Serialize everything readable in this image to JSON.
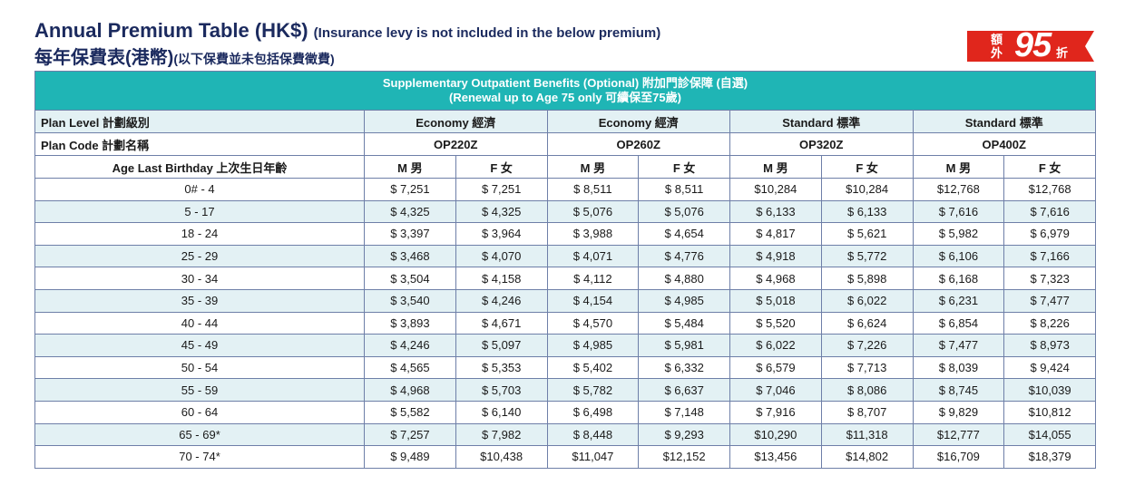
{
  "title": {
    "en_main": "Annual Premium Table (HK$)",
    "en_note": "(Insurance levy is not included in the below premium)",
    "zh_main": "每年保費表(港幣)",
    "zh_note": "(以下保費並未包括保費徵費)"
  },
  "badge": {
    "small_top": "額",
    "small_bottom": "外",
    "big": "95",
    "suffix": "折",
    "color": "#e0261c"
  },
  "table": {
    "section_title_line1": "Supplementary Outpatient Benefits (Optional) 附加門診保障 (自選)",
    "section_title_line2": "(Renewal up to Age 75 only 可續保至75歲)",
    "plan_level_label": "Plan Level 計劃級別",
    "plan_code_label": "Plan Code 計劃名稱",
    "age_label": "Age Last Birthday 上次生日年齡",
    "plans": [
      {
        "level": "Economy 經濟",
        "code": "OP220Z"
      },
      {
        "level": "Economy 經濟",
        "code": "OP260Z"
      },
      {
        "level": "Standard 標準",
        "code": "OP320Z"
      },
      {
        "level": "Standard 標準",
        "code": "OP400Z"
      }
    ],
    "gender_m": "M 男",
    "gender_f": "F 女",
    "rows": [
      {
        "age": "0# - 4",
        "v": [
          "$ 7,251",
          "$ 7,251",
          "$ 8,511",
          "$ 8,511",
          "$10,284",
          "$10,284",
          "$12,768",
          "$12,768"
        ]
      },
      {
        "age": "5 - 17",
        "v": [
          "$ 4,325",
          "$ 4,325",
          "$ 5,076",
          "$ 5,076",
          "$ 6,133",
          "$ 6,133",
          "$ 7,616",
          "$ 7,616"
        ]
      },
      {
        "age": "18 - 24",
        "v": [
          "$ 3,397",
          "$ 3,964",
          "$ 3,988",
          "$ 4,654",
          "$ 4,817",
          "$ 5,621",
          "$ 5,982",
          "$ 6,979"
        ]
      },
      {
        "age": "25 - 29",
        "v": [
          "$ 3,468",
          "$ 4,070",
          "$ 4,071",
          "$ 4,776",
          "$ 4,918",
          "$ 5,772",
          "$ 6,106",
          "$ 7,166"
        ]
      },
      {
        "age": "30 - 34",
        "v": [
          "$ 3,504",
          "$ 4,158",
          "$ 4,112",
          "$ 4,880",
          "$ 4,968",
          "$ 5,898",
          "$ 6,168",
          "$ 7,323"
        ]
      },
      {
        "age": "35 - 39",
        "v": [
          "$ 3,540",
          "$ 4,246",
          "$ 4,154",
          "$ 4,985",
          "$ 5,018",
          "$ 6,022",
          "$ 6,231",
          "$ 7,477"
        ]
      },
      {
        "age": "40 - 44",
        "v": [
          "$ 3,893",
          "$ 4,671",
          "$ 4,570",
          "$ 5,484",
          "$ 5,520",
          "$ 6,624",
          "$ 6,854",
          "$ 8,226"
        ]
      },
      {
        "age": "45 - 49",
        "v": [
          "$ 4,246",
          "$ 5,097",
          "$ 4,985",
          "$ 5,981",
          "$ 6,022",
          "$ 7,226",
          "$ 7,477",
          "$ 8,973"
        ]
      },
      {
        "age": "50 - 54",
        "v": [
          "$ 4,565",
          "$ 5,353",
          "$ 5,402",
          "$ 6,332",
          "$ 6,579",
          "$ 7,713",
          "$ 8,039",
          "$ 9,424"
        ]
      },
      {
        "age": "55 - 59",
        "v": [
          "$ 4,968",
          "$ 5,703",
          "$ 5,782",
          "$ 6,637",
          "$ 7,046",
          "$ 8,086",
          "$ 8,745",
          "$10,039"
        ]
      },
      {
        "age": "60 - 64",
        "v": [
          "$ 5,582",
          "$ 6,140",
          "$ 6,498",
          "$ 7,148",
          "$ 7,916",
          "$ 8,707",
          "$ 9,829",
          "$10,812"
        ]
      },
      {
        "age": "65 - 69*",
        "v": [
          "$ 7,257",
          "$ 7,982",
          "$ 8,448",
          "$ 9,293",
          "$10,290",
          "$11,318",
          "$12,777",
          "$14,055"
        ]
      },
      {
        "age": "70 - 74*",
        "v": [
          "$ 9,489",
          "$10,438",
          "$11,047",
          "$12,152",
          "$13,456",
          "$14,802",
          "$16,709",
          "$18,379"
        ]
      }
    ]
  },
  "colors": {
    "title": "#1b2a5e",
    "teal": "#1fb5b5",
    "stripe": "#e3f1f4",
    "border": "#6e7fa8"
  }
}
